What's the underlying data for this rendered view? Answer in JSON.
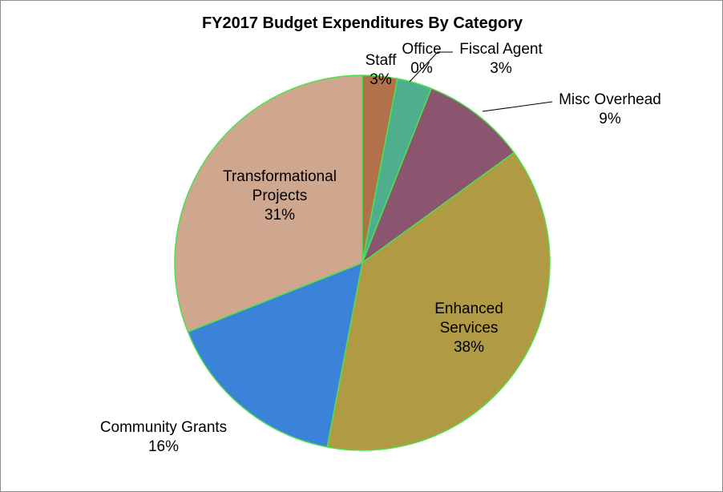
{
  "chart_data": {
    "type": "pie",
    "title": "FY2017 Budget Expenditures By Category",
    "slices": [
      {
        "name": "Staff",
        "value": 3,
        "label": "3%",
        "color": "#b0714b"
      },
      {
        "name": "Office",
        "value": 0,
        "label": "0%",
        "color": "#e58a2e"
      },
      {
        "name": "Fiscal Agent",
        "value": 3,
        "label": "3%",
        "color": "#4fae8e"
      },
      {
        "name": "Misc Overhead",
        "value": 9,
        "label": "9%",
        "color": "#8b5570"
      },
      {
        "name": "Enhanced Services",
        "value": 38,
        "label": "38%",
        "color": "#b09a44"
      },
      {
        "name": "Community Grants",
        "value": 16,
        "label": "16%",
        "color": "#3b83d8"
      },
      {
        "name": "Transformational Projects",
        "value": 31,
        "label": "31%",
        "color": "#cfa78f"
      }
    ],
    "slice_border_color": "#4fe04f",
    "legend": "none",
    "label_lines": [
      {
        "name": "Transformational",
        "lines": [
          "Transformational",
          "Projects",
          "31%"
        ]
      },
      {
        "name": "Enhanced",
        "lines": [
          "Enhanced",
          "Services",
          "38%"
        ]
      }
    ]
  }
}
